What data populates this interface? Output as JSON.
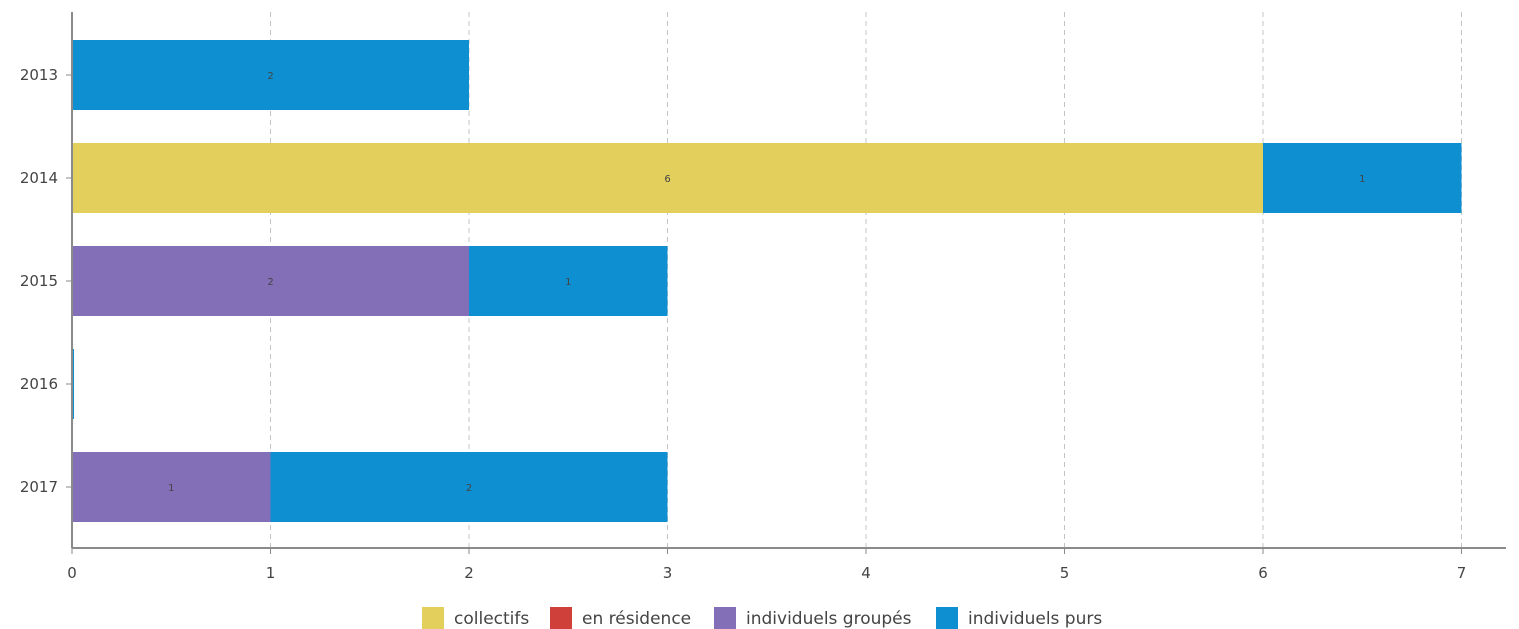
{
  "chart_data": {
    "type": "bar",
    "orientation": "horizontal",
    "stacked": true,
    "categories": [
      "2013",
      "2014",
      "2015",
      "2016",
      "2017"
    ],
    "series": [
      {
        "name": "collectifs",
        "color": "#e3cf5c",
        "values": [
          0,
          6,
          0,
          0,
          0
        ]
      },
      {
        "name": "en résidence",
        "color": "#d0403a",
        "values": [
          0,
          0,
          0,
          0,
          0
        ]
      },
      {
        "name": "individuels groupés",
        "color": "#836fb8",
        "values": [
          0,
          0,
          2,
          0,
          1
        ]
      },
      {
        "name": "individuels purs",
        "color": "#0e8fd1",
        "values": [
          2,
          1,
          1,
          0,
          2
        ]
      }
    ],
    "x_ticks": [
      "0",
      "1",
      "2",
      "3",
      "4",
      "5",
      "6",
      "7"
    ],
    "xlim": [
      0,
      7.25
    ],
    "grid": "vertical dashed",
    "legend_position": "bottom-center",
    "title": "",
    "xlabel": "",
    "ylabel": ""
  }
}
